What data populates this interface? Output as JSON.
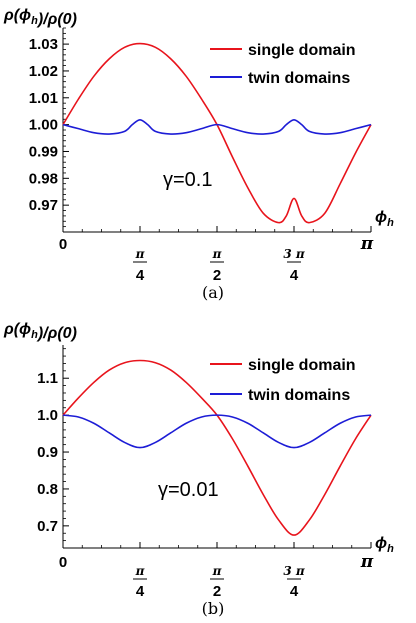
{
  "chart_data": [
    {
      "type": "line",
      "panel": "a",
      "caption": "(a)",
      "ylabel": "ρ(ϕh)/ρ(0)",
      "xlabel": "ϕh",
      "annotation": "γ=0.1",
      "xlim": [
        0,
        3.14159
      ],
      "ylim": [
        0.96,
        1.036
      ],
      "y_ticks": [
        {
          "value": 0.97,
          "label": "0.97"
        },
        {
          "value": 0.98,
          "label": "0.98"
        },
        {
          "value": 0.99,
          "label": "0.99"
        },
        {
          "value": 1.0,
          "label": "1.00"
        },
        {
          "value": 1.01,
          "label": "1.01"
        },
        {
          "value": 1.02,
          "label": "1.02"
        },
        {
          "value": 1.03,
          "label": "1.03"
        }
      ],
      "x_ticks": [
        {
          "value": 0,
          "label": "0",
          "num": "",
          "den": ""
        },
        {
          "value": 0.7854,
          "label": "",
          "num": "π",
          "den": "4"
        },
        {
          "value": 1.5708,
          "label": "",
          "num": "π",
          "den": "2"
        },
        {
          "value": 2.3562,
          "label": "",
          "num": "3 π",
          "den": "4"
        },
        {
          "value": 3.14159,
          "label": "π",
          "num": "",
          "den": ""
        }
      ],
      "series": [
        {
          "name": "single domain",
          "color": "#e8141c",
          "x": [
            0,
            0.1571,
            0.3142,
            0.4712,
            0.6283,
            0.7854,
            0.9425,
            1.0996,
            1.2566,
            1.4137,
            1.5708,
            1.7279,
            1.885,
            2.042,
            2.1991,
            2.2776,
            2.3562,
            2.4347,
            2.5133,
            2.6704,
            2.8274,
            2.9845,
            3.1416
          ],
          "y": [
            1.0,
            1.0095,
            1.018,
            1.0245,
            1.0288,
            1.0302,
            1.0288,
            1.0245,
            1.018,
            1.0095,
            1.0,
            0.988,
            0.9765,
            0.967,
            0.9635,
            0.966,
            0.9725,
            0.966,
            0.9635,
            0.967,
            0.978,
            0.9895,
            1.0
          ]
        },
        {
          "name": "twin domains",
          "color": "#1d1dd6",
          "x": [
            0,
            0.1571,
            0.3142,
            0.4712,
            0.6283,
            0.7069,
            0.7854,
            0.8639,
            0.9425,
            1.0996,
            1.2566,
            1.4137,
            1.5708,
            1.7279,
            1.885,
            2.042,
            2.1991,
            2.2776,
            2.3562,
            2.4347,
            2.5133,
            2.6704,
            2.8274,
            2.9845,
            3.1416
          ],
          "y": [
            1.0,
            0.9985,
            0.997,
            0.9965,
            0.9975,
            1.0,
            1.0018,
            1.0,
            0.9975,
            0.9965,
            0.997,
            0.9985,
            1.0,
            0.9985,
            0.997,
            0.9965,
            0.9975,
            1.0,
            1.0018,
            1.0,
            0.9975,
            0.9965,
            0.997,
            0.9985,
            1.0
          ]
        }
      ]
    },
    {
      "type": "line",
      "panel": "b",
      "caption": "(b)",
      "ylabel": "ρ(ϕh)/ρ(0)",
      "xlabel": "ϕh",
      "annotation": "γ=0.01",
      "xlim": [
        0,
        3.14159
      ],
      "ylim": [
        0.64,
        1.19
      ],
      "y_ticks": [
        {
          "value": 0.7,
          "label": "0.7"
        },
        {
          "value": 0.8,
          "label": "0.8"
        },
        {
          "value": 0.9,
          "label": "0.9"
        },
        {
          "value": 1.0,
          "label": "1.0"
        },
        {
          "value": 1.1,
          "label": "1.1"
        }
      ],
      "x_ticks": [
        {
          "value": 0,
          "label": "0",
          "num": "",
          "den": ""
        },
        {
          "value": 0.7854,
          "label": "",
          "num": "π",
          "den": "4"
        },
        {
          "value": 1.5708,
          "label": "",
          "num": "π",
          "den": "2"
        },
        {
          "value": 2.3562,
          "label": "",
          "num": "3 π",
          "den": "4"
        },
        {
          "value": 3.14159,
          "label": "π",
          "num": "",
          "den": ""
        }
      ],
      "series": [
        {
          "name": "single domain",
          "color": "#e8141c",
          "x": [
            0,
            0.1571,
            0.3142,
            0.4712,
            0.6283,
            0.7854,
            0.9425,
            1.0996,
            1.2566,
            1.4137,
            1.5708,
            1.7279,
            1.885,
            2.042,
            2.1991,
            2.3562,
            2.5133,
            2.6704,
            2.8274,
            2.9845,
            3.1416
          ],
          "y": [
            1.0,
            1.0465,
            1.0885,
            1.122,
            1.142,
            1.148,
            1.142,
            1.122,
            1.0885,
            1.0465,
            1.0,
            0.936,
            0.862,
            0.785,
            0.716,
            0.675,
            0.716,
            0.785,
            0.862,
            0.936,
            1.0
          ]
        },
        {
          "name": "twin domains",
          "color": "#1d1dd6",
          "x": [
            0,
            0.1571,
            0.3142,
            0.4712,
            0.6283,
            0.7854,
            0.9425,
            1.0996,
            1.2566,
            1.4137,
            1.5708,
            1.7279,
            1.885,
            2.042,
            2.1991,
            2.3562,
            2.5133,
            2.6704,
            2.8274,
            2.9845,
            3.1416
          ],
          "y": [
            1.0,
            0.995,
            0.978,
            0.952,
            0.926,
            0.912,
            0.926,
            0.952,
            0.978,
            0.995,
            1.0,
            0.995,
            0.978,
            0.952,
            0.926,
            0.912,
            0.926,
            0.952,
            0.978,
            0.995,
            1.0
          ]
        }
      ]
    }
  ]
}
